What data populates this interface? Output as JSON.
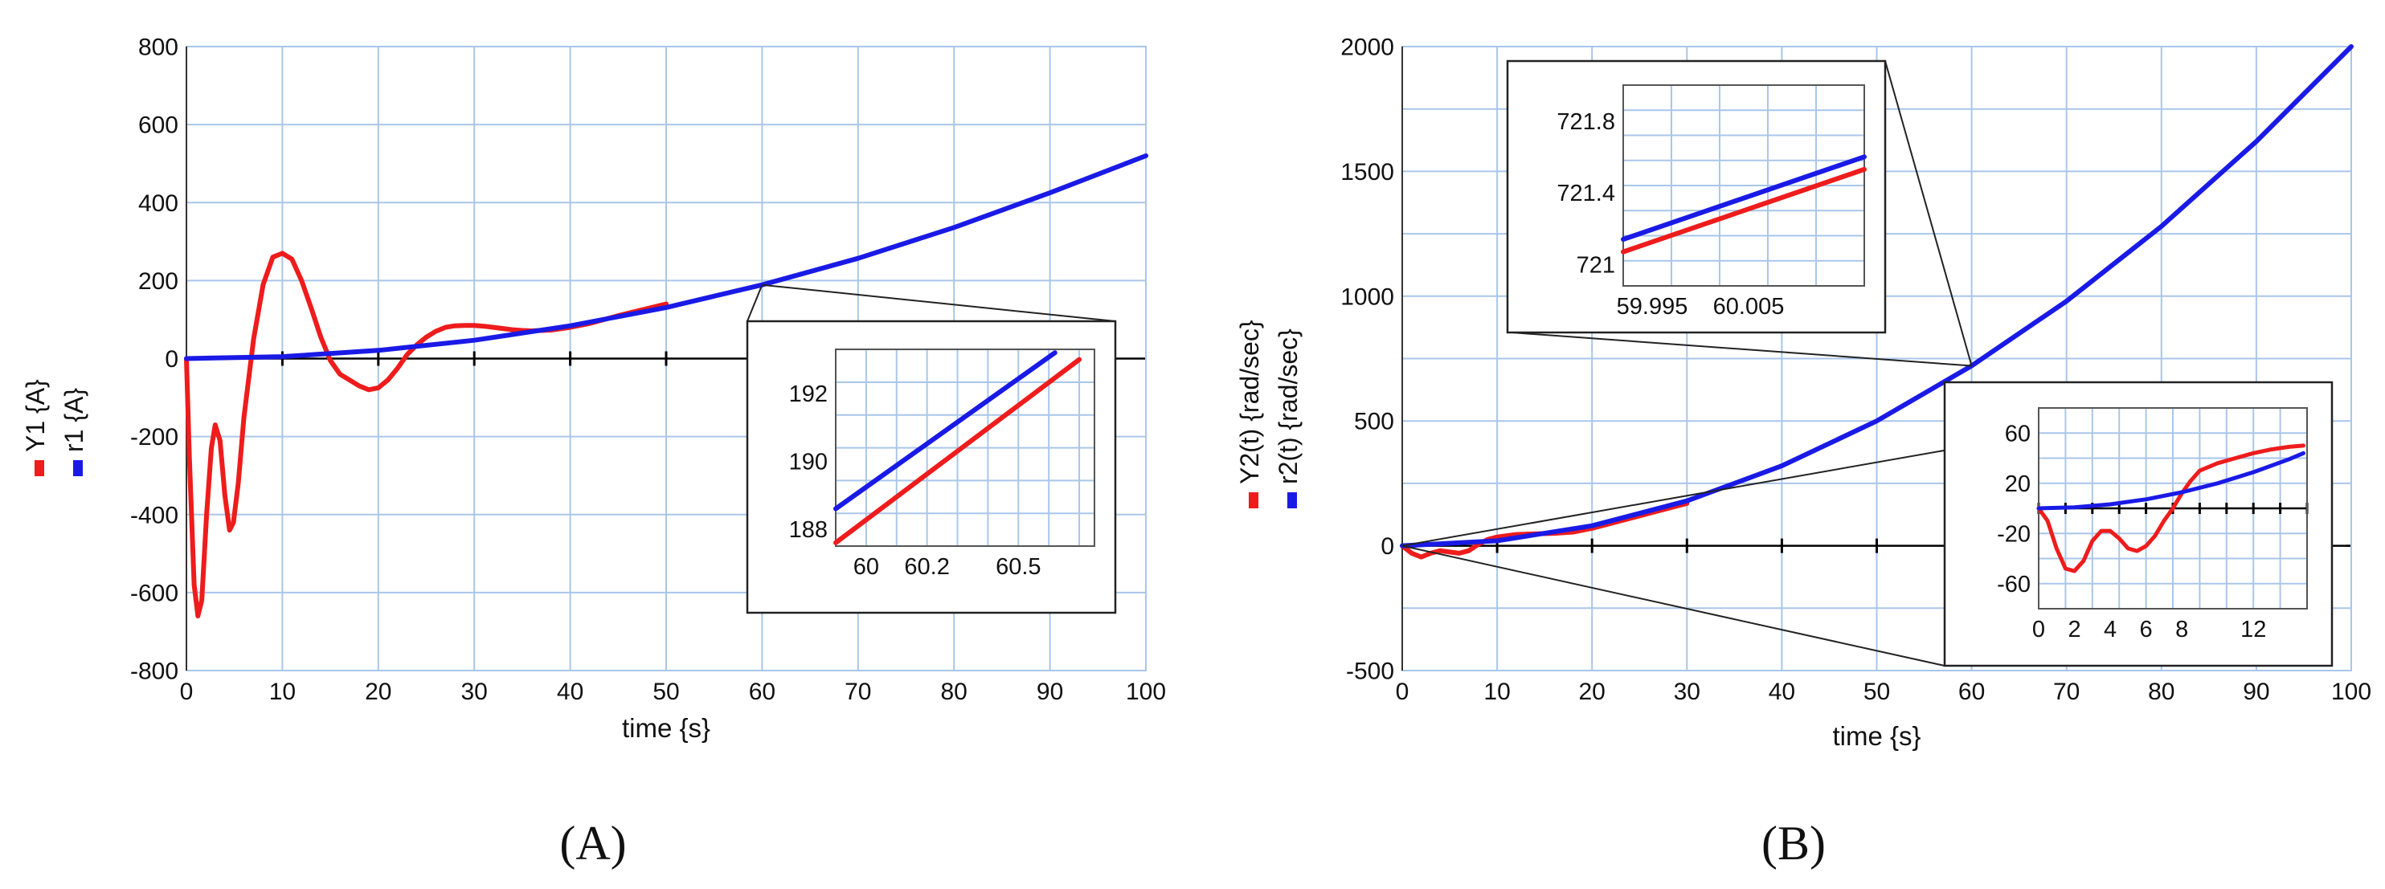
{
  "figure": {
    "panels": [
      "(A)",
      "(B)"
    ]
  },
  "chart_data": [
    {
      "id": "A",
      "type": "line",
      "panel_label": "(A)",
      "xlabel": "time {s}",
      "ylabel": "",
      "xlim": [
        0,
        100
      ],
      "ylim": [
        -800,
        800
      ],
      "xticks": [
        0,
        10,
        20,
        30,
        40,
        50,
        60,
        70,
        80,
        90,
        100
      ],
      "yticks": [
        -800,
        -600,
        -400,
        -200,
        0,
        200,
        400,
        600,
        800
      ],
      "grid": true,
      "legend": [
        {
          "name": "Y1 {A}",
          "color": "#ee1c1c"
        },
        {
          "name": "r1 {A}",
          "color": "#1a1ae6"
        }
      ],
      "series": [
        {
          "name": "Y1 {A}",
          "color": "#ee1c1c",
          "x": [
            0,
            0.3,
            0.8,
            1.2,
            1.6,
            2.1,
            2.6,
            3.0,
            3.5,
            4.0,
            4.5,
            4.9,
            5.4,
            6.0,
            7.0,
            8.0,
            9.0,
            10.0,
            11.0,
            12.0,
            13.0,
            14.0,
            15.0,
            16.0,
            17.0,
            18.0,
            19.0,
            20.0,
            21.0,
            22.0,
            23.0,
            24.0,
            25.0,
            26.0,
            27.0,
            28.0,
            29.0,
            30.0,
            31.0,
            32.0,
            33.0,
            34.0,
            35.0,
            36.0,
            38.0,
            40.0,
            42.0,
            45.0,
            50.0
          ],
          "y": [
            0,
            -250,
            -580,
            -660,
            -620,
            -400,
            -230,
            -170,
            -210,
            -350,
            -440,
            -420,
            -320,
            -150,
            50,
            190,
            260,
            270,
            255,
            200,
            130,
            55,
            -5,
            -40,
            -55,
            -70,
            -80,
            -75,
            -55,
            -25,
            10,
            35,
            55,
            70,
            80,
            84,
            85,
            85,
            83,
            80,
            77,
            74,
            72,
            71,
            73,
            80,
            90,
            110,
            140
          ]
        },
        {
          "name": "r1 {A}",
          "color": "#1a1ae6",
          "x": [
            0,
            10,
            20,
            30,
            40,
            50,
            60,
            70,
            80,
            90,
            100
          ],
          "y": [
            0,
            5,
            21,
            47,
            84,
            131,
            189,
            257,
            336,
            425,
            520
          ]
        }
      ],
      "inset": {
        "xlim": [
          59.9,
          60.75
        ],
        "ylim": [
          187.5,
          193.3
        ],
        "xticks": [
          60,
          60.2,
          60.5
        ],
        "xticklabels": [
          "60",
          "60.2",
          "60.5"
        ],
        "yticks": [
          188,
          190,
          192
        ],
        "grid": true,
        "zoom_point": [
          60,
          189
        ],
        "series": [
          {
            "name": "Y1 {A}",
            "color": "#ee1c1c",
            "x": [
              59.9,
              60.7
            ],
            "y": [
              187.6,
              193.0
            ]
          },
          {
            "name": "r1 {A}",
            "color": "#1a1ae6",
            "x": [
              59.9,
              60.62
            ],
            "y": [
              188.6,
              193.2
            ]
          }
        ]
      }
    },
    {
      "id": "B",
      "type": "line",
      "panel_label": "(B)",
      "xlabel": "time {s}",
      "ylabel": "",
      "xlim": [
        0,
        100
      ],
      "ylim": [
        -500,
        2000
      ],
      "xticks": [
        0,
        10,
        20,
        30,
        40,
        50,
        60,
        70,
        80,
        90,
        100
      ],
      "yticks": [
        -500,
        0,
        500,
        1000,
        1500,
        2000
      ],
      "grid": true,
      "legend": [
        {
          "name": "Y2(t) {rad/sec}",
          "color": "#ee1c1c"
        },
        {
          "name": "r2(t) {rad/sec}",
          "color": "#1a1ae6"
        }
      ],
      "series": [
        {
          "name": "Y2(t) {rad/sec}",
          "color": "#ee1c1c",
          "x": [
            0,
            1,
            2,
            3,
            4,
            5,
            6,
            7,
            8,
            9,
            10,
            12,
            14,
            16,
            18,
            20,
            25,
            30
          ],
          "y": [
            0,
            -30,
            -45,
            -30,
            -20,
            -25,
            -30,
            -20,
            5,
            25,
            35,
            45,
            48,
            50,
            55,
            70,
            120,
            170
          ]
        },
        {
          "name": "r2(t) {rad/sec}",
          "color": "#1a1ae6",
          "x": [
            0,
            10,
            20,
            30,
            40,
            50,
            60,
            70,
            80,
            90,
            100
          ],
          "y": [
            0,
            20,
            80,
            180,
            320,
            500,
            721,
            980,
            1280,
            1620,
            2000
          ]
        }
      ],
      "inset_top": {
        "xlim": [
          59.992,
          60.017
        ],
        "ylim": [
          720.88,
          722.0
        ],
        "xticks": [
          59.995,
          60.005
        ],
        "xticklabels": [
          "59.995",
          "60.005"
        ],
        "yticks": [
          721,
          721.4,
          721.8
        ],
        "yticklabels": [
          "721",
          "721.4",
          "721.8"
        ],
        "grid": true,
        "zoom_point": [
          60,
          721
        ],
        "series": [
          {
            "name": "Y2(t) {rad/sec}",
            "color": "#ee1c1c",
            "x": [
              59.992,
              60.017
            ],
            "y": [
              721.07,
              721.53
            ]
          },
          {
            "name": "r2(t) {rad/sec}",
            "color": "#1a1ae6",
            "x": [
              59.992,
              60.017
            ],
            "y": [
              721.14,
              721.6
            ]
          }
        ]
      },
      "inset_bottom": {
        "xlim": [
          0,
          15
        ],
        "ylim": [
          -80,
          80
        ],
        "xticks": [
          0,
          2,
          4,
          6,
          8,
          12
        ],
        "yticks": [
          -60,
          -20,
          20,
          60
        ],
        "grid": true,
        "zoom_point": [
          0,
          0
        ],
        "series": [
          {
            "name": "Y2(t) {rad/sec}",
            "color": "#ee1c1c",
            "x": [
              0,
              0.5,
              1,
              1.5,
              2,
              2.5,
              3,
              3.5,
              4,
              4.5,
              5,
              5.5,
              6,
              6.5,
              7,
              7.5,
              8,
              8.5,
              9,
              10,
              11,
              12,
              13,
              14,
              14.8
            ],
            "y": [
              0,
              -10,
              -32,
              -48,
              -50,
              -42,
              -26,
              -18,
              -18,
              -24,
              -32,
              -34,
              -30,
              -22,
              -10,
              0,
              12,
              22,
              30,
              36,
              40,
              44,
              47,
              49,
              50
            ]
          },
          {
            "name": "r2(t) {rad/sec}",
            "color": "#1a1ae6",
            "x": [
              0,
              2,
              4,
              6,
              8,
              10,
              12,
              14,
              14.8
            ],
            "y": [
              0,
              0.8,
              3.2,
              7.2,
              12.8,
              20,
              28.8,
              39.2,
              44
            ]
          }
        ]
      }
    }
  ]
}
